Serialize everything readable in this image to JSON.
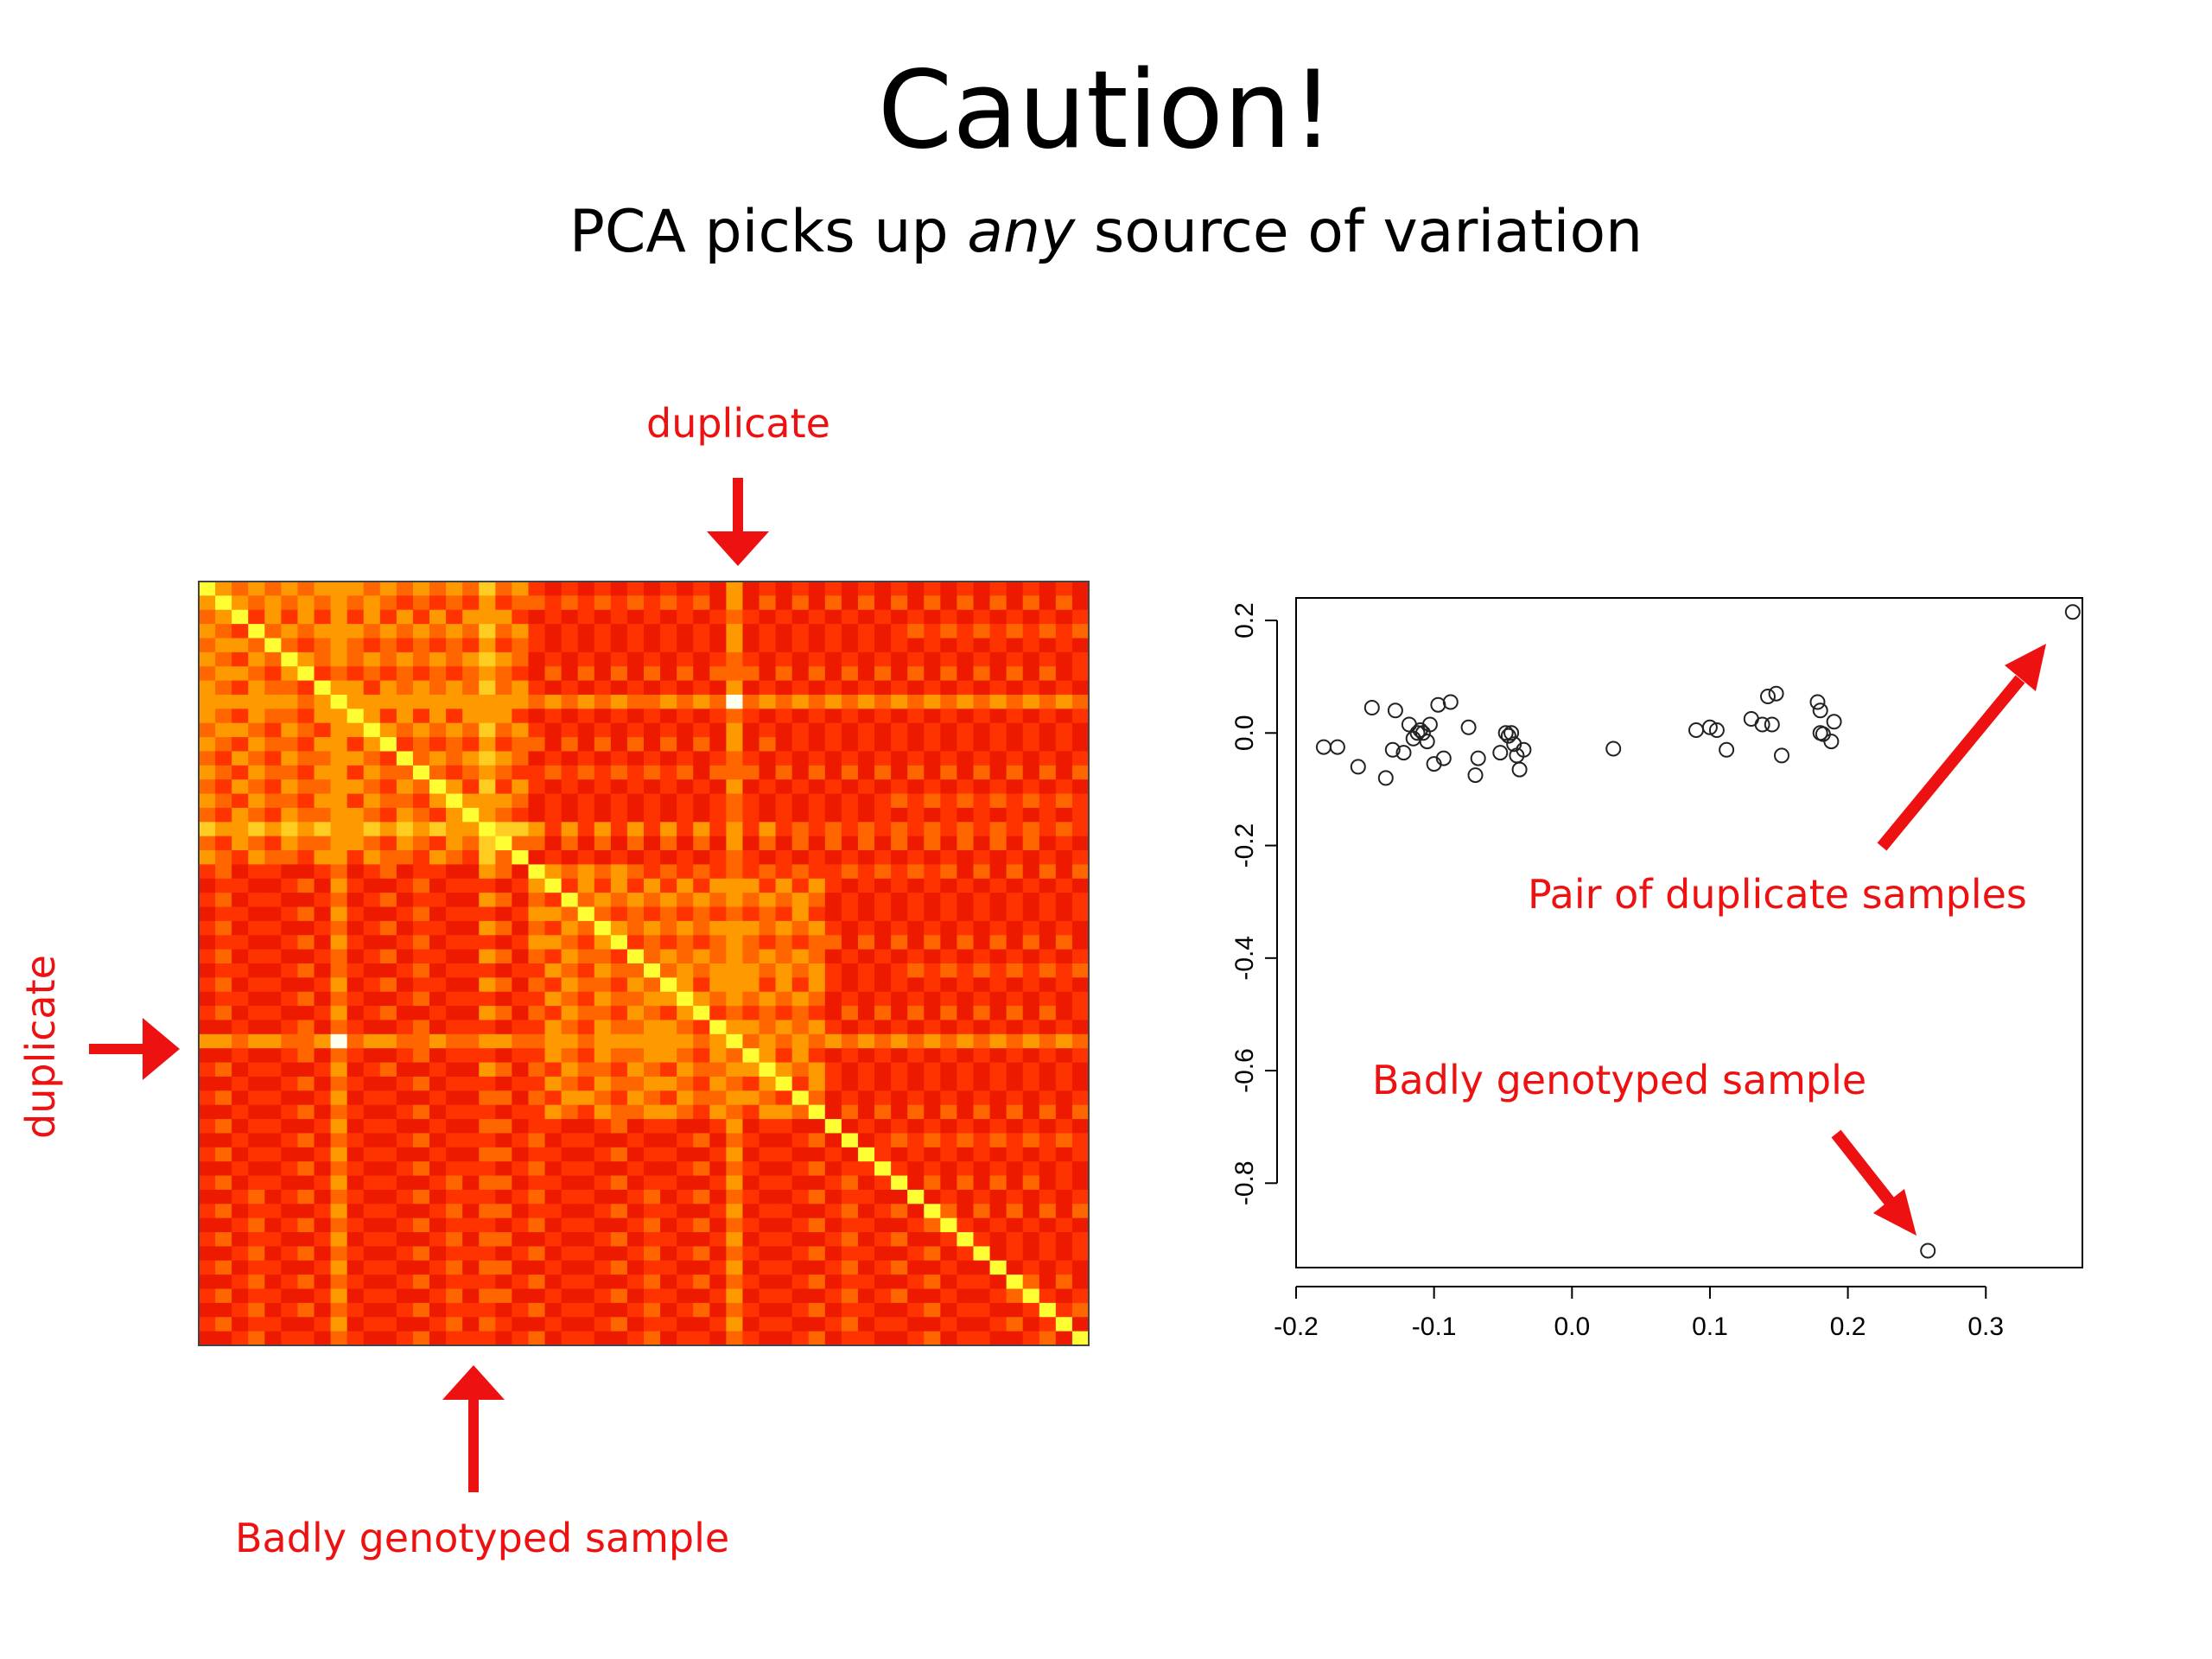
{
  "slide": {
    "title": "Caution!",
    "subtitle_pre": "PCA picks up ",
    "subtitle_em": "any",
    "subtitle_post": " source of variation"
  },
  "annotations": {
    "heatmap_top": "duplicate",
    "heatmap_left": "duplicate",
    "heatmap_bottom": "Badly genotyped sample",
    "scatter_duplicate": "Pair of duplicate samples",
    "scatter_bad": "Badly genotyped sample"
  },
  "colors": {
    "annotation": "#ee1111",
    "heatmap_low": "#ee1a00",
    "heatmap_high": "#ffff33",
    "point_stroke": "#222222"
  },
  "chart_data": [
    {
      "type": "heatmap",
      "n_samples": 54,
      "color_scale": [
        "#ee1a00",
        "#ff3300",
        "#ff6600",
        "#ff9900",
        "#ffcc22",
        "#ffff33",
        "#fffff0"
      ],
      "diagonal_value": 1.0,
      "highlighted_samples": {
        "duplicate_pair": [
          8,
          32
        ],
        "duplicate_pair_value": 1.0,
        "badly_genotyped": 17
      }
    },
    {
      "type": "scatter",
      "xlim": [
        -0.2,
        0.37
      ],
      "ylim": [
        -0.95,
        0.24
      ],
      "xticks": [
        -0.2,
        -0.1,
        0.0,
        0.1,
        0.2,
        0.3
      ],
      "xtick_labels": [
        "-0.2",
        "-0.1",
        "0.0",
        "0.1",
        "0.2",
        "0.3"
      ],
      "yticks": [
        -0.8,
        -0.6,
        -0.4,
        -0.2,
        0.0,
        0.2
      ],
      "ytick_labels": [
        "-0.8",
        "-0.6",
        "-0.4",
        "-0.2",
        "0.0",
        "0.2"
      ],
      "points": [
        [
          -0.18,
          -0.025
        ],
        [
          -0.17,
          -0.025
        ],
        [
          -0.155,
          -0.06
        ],
        [
          -0.145,
          0.045
        ],
        [
          -0.135,
          -0.08
        ],
        [
          -0.13,
          -0.03
        ],
        [
          -0.128,
          0.04
        ],
        [
          -0.122,
          -0.035
        ],
        [
          -0.118,
          0.015
        ],
        [
          -0.115,
          -0.01
        ],
        [
          -0.112,
          0.0
        ],
        [
          -0.11,
          0.005
        ],
        [
          -0.108,
          0.0
        ],
        [
          -0.105,
          -0.015
        ],
        [
          -0.103,
          0.015
        ],
        [
          -0.1,
          -0.055
        ],
        [
          -0.097,
          0.05
        ],
        [
          -0.093,
          -0.045
        ],
        [
          -0.088,
          0.055
        ],
        [
          -0.075,
          0.01
        ],
        [
          -0.07,
          -0.075
        ],
        [
          -0.068,
          -0.045
        ],
        [
          -0.052,
          -0.035
        ],
        [
          -0.048,
          0.0
        ],
        [
          -0.046,
          -0.005
        ],
        [
          -0.044,
          0.0
        ],
        [
          -0.042,
          -0.02
        ],
        [
          -0.04,
          -0.04
        ],
        [
          -0.038,
          -0.065
        ],
        [
          -0.035,
          -0.03
        ],
        [
          0.03,
          -0.028
        ],
        [
          0.09,
          0.005
        ],
        [
          0.1,
          0.01
        ],
        [
          0.105,
          0.005
        ],
        [
          0.112,
          -0.03
        ],
        [
          0.13,
          0.025
        ],
        [
          0.138,
          0.015
        ],
        [
          0.142,
          0.065
        ],
        [
          0.145,
          0.015
        ],
        [
          0.148,
          0.07
        ],
        [
          0.152,
          -0.04
        ],
        [
          0.178,
          0.055
        ],
        [
          0.18,
          0.04
        ],
        [
          0.18,
          0.0
        ],
        [
          0.182,
          -0.002
        ],
        [
          0.188,
          -0.015
        ],
        [
          0.19,
          0.02
        ],
        [
          0.258,
          -0.92
        ],
        [
          0.363,
          0.215
        ]
      ],
      "annotated_points": {
        "duplicate_pair": [
          0.363,
          0.215
        ],
        "badly_genotyped": [
          0.258,
          -0.92
        ]
      }
    }
  ]
}
